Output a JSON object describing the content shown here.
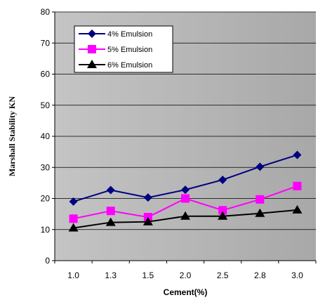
{
  "chart_data": {
    "type": "line",
    "categories": [
      "1.0",
      "1.3",
      "1.5",
      "2.0",
      "2.5",
      "2.8",
      "3.0"
    ],
    "xlabel": "Cement(%)",
    "ylabel": "Marshall Stability KN",
    "ylim": [
      0,
      80
    ],
    "yticks": [
      "0",
      "10",
      "20",
      "30",
      "40",
      "50",
      "60",
      "70",
      "80"
    ],
    "grid": true,
    "legend": "top-left",
    "series": [
      {
        "name": "4% Emulsion",
        "color": "#000080",
        "marker": "diamond",
        "values": [
          19,
          22.7,
          20.3,
          22.8,
          26,
          30.2,
          34
        ]
      },
      {
        "name": "5% Emulsion",
        "color": "#ff00ff",
        "marker": "square",
        "values": [
          13.5,
          16,
          14,
          20,
          16.2,
          19.7,
          24
        ]
      },
      {
        "name": "6% Emulsion",
        "color": "#000000",
        "marker": "triangle",
        "values": [
          10.5,
          12.3,
          12.5,
          14.3,
          14.3,
          15.2,
          16.3
        ]
      }
    ]
  }
}
